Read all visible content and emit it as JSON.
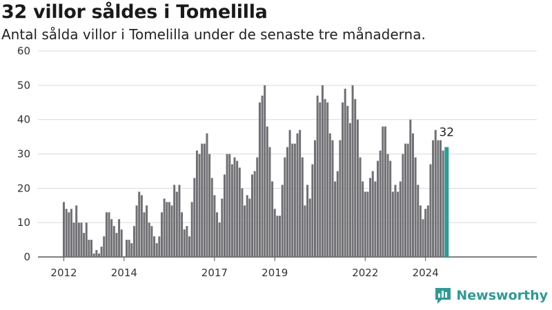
{
  "header": {
    "title": "32 villor såldes i Tomelilla",
    "subtitle": "Antal sålda villor i Tomelilla under de senaste tre månaderna."
  },
  "brand": {
    "name": "Newsworthy",
    "icon": "newsworthy-logo-icon"
  },
  "colors": {
    "bar": "#706f73",
    "highlight": "#2a9d96",
    "grid": "#d9d9d9",
    "axis": "#555555"
  },
  "chart_data": {
    "type": "bar",
    "title": "32 villor såldes i Tomelilla",
    "subtitle": "Antal sålda villor i Tomelilla under de senaste tre månaderna.",
    "xlabel": "",
    "ylabel": "",
    "ylim": [
      0,
      60
    ],
    "yticks": [
      0,
      10,
      20,
      30,
      40,
      50,
      60
    ],
    "xticks": [
      "2012",
      "2014",
      "2017",
      "2019",
      "2022",
      "2024"
    ],
    "grid": true,
    "highlight_last": true,
    "last_label": "32",
    "values": [
      16,
      14,
      13,
      14,
      10,
      15,
      10,
      10,
      7,
      10,
      5,
      5,
      1,
      2,
      1,
      3,
      6,
      13,
      13,
      11,
      9,
      7,
      11,
      8,
      0,
      5,
      5,
      4,
      9,
      15,
      19,
      18,
      13,
      15,
      10,
      9,
      6,
      4,
      6,
      13,
      17,
      16,
      16,
      15,
      21,
      19,
      21,
      13,
      8,
      9,
      6,
      16,
      23,
      31,
      30,
      33,
      33,
      36,
      30,
      23,
      18,
      13,
      10,
      17,
      24,
      30,
      30,
      27,
      29,
      28,
      26,
      20,
      15,
      18,
      17,
      24,
      25,
      29,
      45,
      47,
      50,
      38,
      32,
      22,
      14,
      12,
      12,
      21,
      29,
      32,
      37,
      33,
      33,
      36,
      37,
      29,
      15,
      21,
      17,
      27,
      34,
      47,
      45,
      50,
      46,
      45,
      36,
      34,
      22,
      25,
      34,
      45,
      49,
      44,
      39,
      50,
      46,
      40,
      29,
      22,
      19,
      19,
      23,
      25,
      22,
      28,
      31,
      38,
      38,
      30,
      28,
      19,
      21,
      19,
      22,
      30,
      33,
      33,
      40,
      36,
      29,
      21,
      15,
      11,
      14,
      15,
      27,
      34,
      37,
      34,
      34,
      31,
      32
    ]
  }
}
